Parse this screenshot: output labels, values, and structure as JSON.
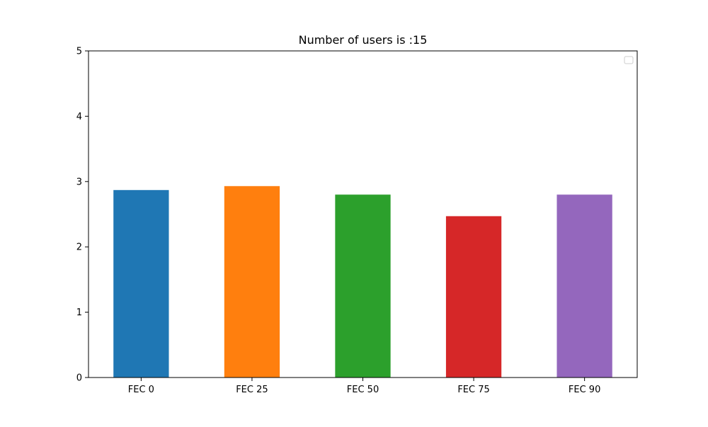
{
  "chart_data": {
    "type": "bar",
    "title": "Number of users is :15",
    "xlabel": "",
    "ylabel": "",
    "categories": [
      "FEC 0",
      "FEC 25",
      "FEC 50",
      "FEC 75",
      "FEC 90"
    ],
    "values": [
      2.87,
      2.93,
      2.8,
      2.47,
      2.8
    ],
    "colors": [
      "#1f77b4",
      "#ff7f0e",
      "#2ca02c",
      "#d62728",
      "#9467bd"
    ],
    "ylim": [
      0,
      5
    ],
    "yticks": [
      0,
      1,
      2,
      3,
      4,
      5
    ],
    "grid": false,
    "legend": {
      "placement": "top-right",
      "entries": []
    }
  }
}
